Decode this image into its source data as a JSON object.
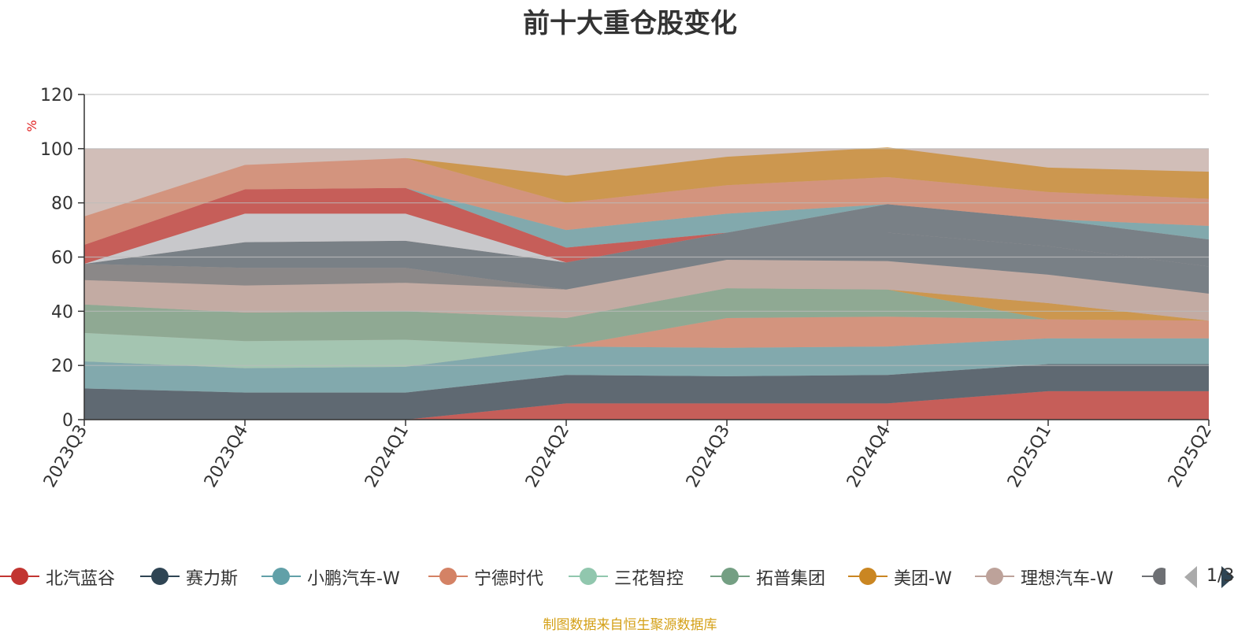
{
  "chart_data": {
    "type": "area",
    "title": "前十大重仓股变化",
    "ylabel": "%",
    "ylim": [
      0,
      120
    ],
    "yticks": [
      0,
      20,
      40,
      60,
      80,
      100,
      120
    ],
    "grid": true,
    "legend_position": "bottom",
    "categories": [
      "2023Q3",
      "2023Q4",
      "2024Q1",
      "2024Q2",
      "2024Q3",
      "2024Q4",
      "2025Q1",
      "2025Q2"
    ],
    "series": [
      {
        "name": "北汽蓝谷",
        "color": "#c23531",
        "values": [
          0,
          0,
          0,
          6,
          6,
          6,
          10.5,
          10.5
        ]
      },
      {
        "name": "赛力斯",
        "color": "#2f4554",
        "values": [
          11.5,
          10,
          10,
          10.5,
          10,
          10.5,
          10,
          10
        ]
      },
      {
        "name": "小鹏汽车-W",
        "color": "#61a0a8",
        "values": [
          10,
          9,
          9.5,
          10.5,
          10.5,
          10.5,
          9.5,
          9.5
        ]
      },
      {
        "name": "宁德时代",
        "color": "#d48265",
        "values": [
          0,
          0,
          0,
          0,
          11,
          11,
          7,
          6.5
        ]
      },
      {
        "name": "三花智控",
        "color": "#91c7ae",
        "values": [
          10.5,
          10,
          10,
          0,
          0,
          0,
          0,
          0
        ]
      },
      {
        "name": "拓普集团",
        "color": "#749f83",
        "values": [
          10.5,
          10.5,
          10.5,
          10.5,
          11,
          10,
          0,
          0
        ]
      },
      {
        "name": "美团-W",
        "color": "#ca8622",
        "values": [
          0,
          0,
          0,
          0,
          0,
          0,
          6,
          0
        ]
      },
      {
        "name": "理想汽车-W",
        "color": "#bda29a",
        "values": [
          9,
          10,
          10.5,
          10.5,
          10.5,
          10.5,
          10.5,
          10
        ]
      },
      {
        "name": "",
        "color": "#6e7074",
        "values": [
          6,
          6.5,
          5.5,
          0,
          0,
          0,
          0,
          0
        ]
      },
      {
        "name": "",
        "color": "#546570",
        "values": [
          0,
          9.5,
          10,
          10,
          10,
          10.5,
          10.5,
          10
        ]
      },
      {
        "name": "",
        "color": "#c4ccd3",
        "values": [
          0,
          10.5,
          10,
          0,
          0,
          0,
          0,
          0
        ]
      },
      {
        "name": "",
        "color": "#546570",
        "values": [
          0,
          0,
          0,
          0,
          0,
          10.5,
          10,
          10
        ]
      },
      {
        "name": "",
        "color": "#c23531",
        "values": [
          7,
          9,
          9.5,
          5.5,
          0,
          0,
          0,
          0
        ]
      },
      {
        "name": "",
        "color": "#61a0a8",
        "values": [
          0,
          0,
          0,
          6.5,
          7,
          0,
          0,
          5
        ]
      },
      {
        "name": "",
        "color": "#d48265",
        "values": [
          10.5,
          9,
          11,
          10,
          10.5,
          10,
          10,
          10
        ]
      },
      {
        "name": "",
        "color": "#ca8622",
        "values": [
          0,
          0,
          0,
          10,
          10.5,
          11,
          9,
          10
        ]
      }
    ],
    "background_band": {
      "from": 0,
      "to": 100,
      "color": "#bda29a"
    }
  },
  "legend": {
    "items": [
      "北汽蓝谷",
      "赛力斯",
      "小鹏汽车-W",
      "宁德时代",
      "三花智控",
      "拓普集团",
      "美团-W",
      "理想汽车-W"
    ],
    "page_indicator": "1/3"
  },
  "source_note": "制图数据来自恒生聚源数据库"
}
